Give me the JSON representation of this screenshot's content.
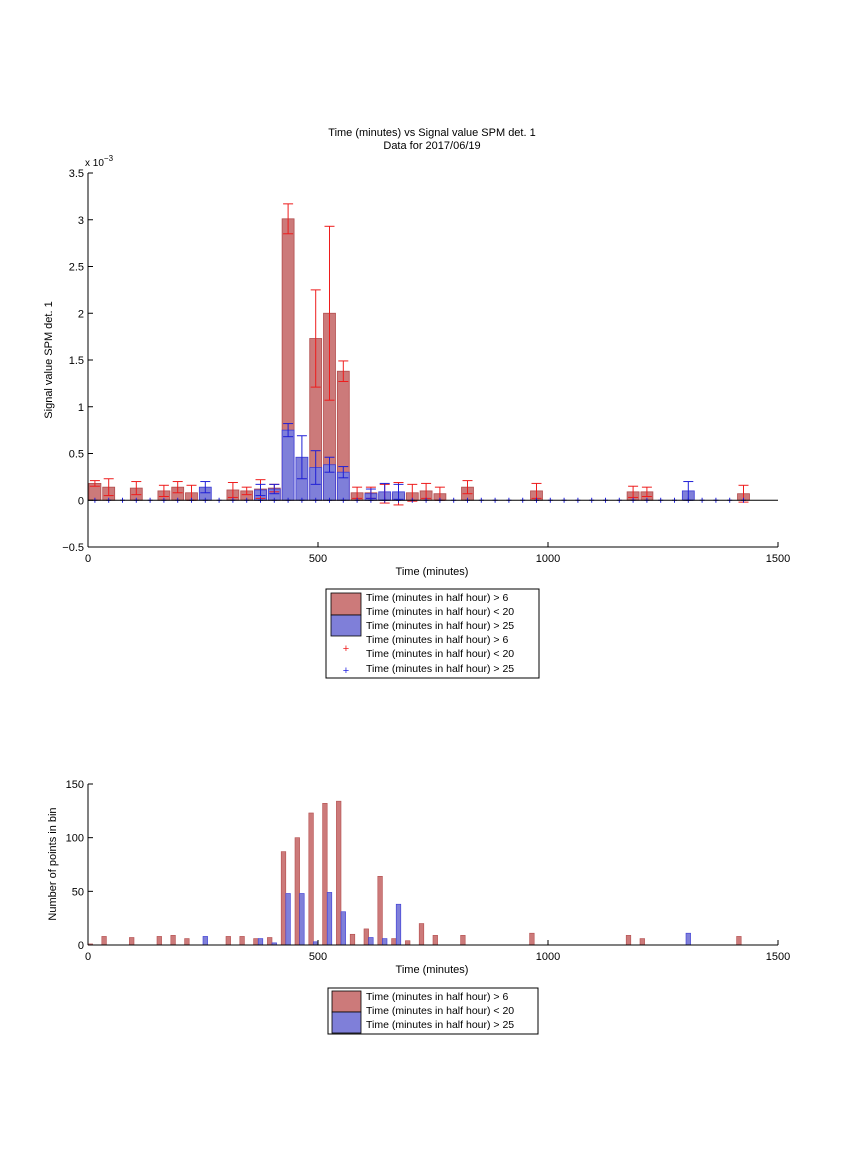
{
  "colors": {
    "red_fill": "#cc7a7a",
    "red_edge": "#b34d4d",
    "blue_fill": "#7f7fd9",
    "blue_edge": "#3b3bd6",
    "err_red": "#ee1c1c",
    "err_blue": "#1f1fd6",
    "marker_blue": "#1f1fe0"
  },
  "chart_data": [
    {
      "type": "bar",
      "title": "Time (minutes) vs Signal value SPM det. 1",
      "subtitle": "Data for 2017/06/19",
      "xlabel": "Time (minutes)",
      "ylabel": "Signal value SPM det. 1",
      "y_exponent": "x 10",
      "y_exponent_power": "−3",
      "xlim": [
        0,
        1500
      ],
      "ylim": [
        -0.5,
        3.5
      ],
      "x_ticks": [
        "0",
        "500",
        "1000",
        "1500"
      ],
      "y_ticks": [
        "−0.5",
        "0",
        "0.5",
        "1",
        "1.5",
        "2",
        "2.5",
        "3",
        "3.5"
      ],
      "legend_placement": "below plot",
      "legend": [
        "Time (minutes in half hour) > 6",
        "Time (minutes in half hour) < 20",
        "Time (minutes in half hour) > 25",
        "Time (minutes in half hour) > 6",
        "Time (minutes in half hour) < 20",
        "Time (minutes in half hour) > 25"
      ],
      "series": [
        {
          "name": "Time (minutes in half hour) > 6 / Time (minutes in half hour) < 20",
          "x": [
            15,
            45,
            105,
            165,
            195,
            225,
            315,
            345,
            375,
            405,
            435,
            495,
            525,
            555,
            585,
            615,
            645,
            675,
            705,
            735,
            765,
            825,
            975,
            1185,
            1215,
            1425
          ],
          "y": [
            0.18,
            0.14,
            0.13,
            0.1,
            0.14,
            0.08,
            0.11,
            0.1,
            0.12,
            0.13,
            3.01,
            1.73,
            2.0,
            1.38,
            0.08,
            0.08,
            0.07,
            0.07,
            0.08,
            0.1,
            0.07,
            0.14,
            0.1,
            0.09,
            0.09,
            0.07
          ],
          "err": [
            0.03,
            0.09,
            0.07,
            0.06,
            0.06,
            0.08,
            0.08,
            0.04,
            0.1,
            0.04,
            0.16,
            0.52,
            0.93,
            0.11,
            0.06,
            0.06,
            0.1,
            0.12,
            0.09,
            0.08,
            0.07,
            0.07,
            0.08,
            0.06,
            0.05,
            0.09
          ]
        },
        {
          "name": "Time (minutes in half hour) > 25",
          "x": [
            255,
            375,
            405,
            435,
            465,
            495,
            525,
            555,
            615,
            645,
            675,
            1305
          ],
          "y": [
            0.14,
            0.11,
            0.12,
            0.75,
            0.46,
            0.35,
            0.38,
            0.3,
            0.07,
            0.09,
            0.09,
            0.1
          ],
          "err": [
            0.06,
            0.06,
            0.05,
            0.07,
            0.23,
            0.18,
            0.08,
            0.06,
            0.05,
            0.09,
            0.08,
            0.1
          ]
        },
        {
          "name": "Time (minutes in half hour) > 25",
          "type": "markers",
          "x": [
            15,
            45,
            75,
            105,
            135,
            165,
            195,
            225,
            255,
            285,
            315,
            345,
            375,
            405,
            435,
            465,
            495,
            525,
            555,
            585,
            615,
            645,
            675,
            705,
            735,
            765,
            795,
            825,
            855,
            885,
            915,
            945,
            975,
            1005,
            1035,
            1065,
            1095,
            1125,
            1155,
            1185,
            1215,
            1245,
            1275,
            1305,
            1335,
            1365,
            1395,
            1425
          ],
          "y": 0
        }
      ]
    },
    {
      "type": "bar",
      "xlabel": "Time (minutes)",
      "ylabel": "Number of points in bin",
      "xlim": [
        0,
        1500
      ],
      "ylim": [
        0,
        150
      ],
      "x_ticks": [
        "0",
        "500",
        "1000",
        "1500"
      ],
      "y_ticks": [
        "0",
        "50",
        "100",
        "150"
      ],
      "legend_placement": "below plot",
      "legend": [
        "Time (minutes in half hour) > 6",
        "Time (minutes in half hour) < 20",
        "Time (minutes in half hour) > 25"
      ],
      "series": [
        {
          "name": "Time (minutes in half hour) > 6 / Time (minutes in half hour) < 20",
          "x": [
            5,
            35,
            95,
            155,
            185,
            215,
            305,
            335,
            365,
            395,
            425,
            455,
            485,
            515,
            545,
            575,
            605,
            635,
            665,
            695,
            725,
            755,
            815,
            965,
            1175,
            1205,
            1415
          ],
          "y": [
            1,
            8,
            7,
            8,
            9,
            6,
            8,
            8,
            6,
            7,
            87,
            100,
            123,
            132,
            134,
            10,
            15,
            64,
            6,
            4,
            20,
            9,
            9,
            11,
            9,
            6,
            8
          ]
        },
        {
          "name": "Time (minutes in half hour) > 25",
          "x": [
            255,
            375,
            405,
            435,
            465,
            495,
            525,
            555,
            615,
            645,
            675,
            1305
          ],
          "y": [
            8,
            6,
            2,
            48,
            48,
            3,
            49,
            31,
            7,
            6,
            38,
            11
          ]
        }
      ]
    }
  ]
}
